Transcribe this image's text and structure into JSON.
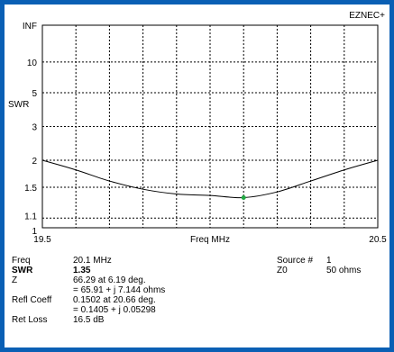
{
  "brand": "EZNEC+",
  "chart_data": {
    "type": "line",
    "ylabel": "SWR",
    "xlabel": "Freq MHz",
    "xlim": [
      19.5,
      20.5
    ],
    "y_scale": "reflection-coefficient",
    "y_ticks": [
      "INF",
      "10",
      "5",
      "3",
      "2",
      "1.5",
      "1.1",
      "1"
    ],
    "x_ticks": [
      "19.5",
      "20.5"
    ],
    "grid": true,
    "series": [
      {
        "x": [
          19.5,
          19.6,
          19.7,
          19.8,
          19.9,
          20.0,
          20.1,
          20.2,
          20.3,
          20.4,
          20.5
        ],
        "y": [
          2.0,
          1.8,
          1.6,
          1.47,
          1.4,
          1.38,
          1.35,
          1.43,
          1.6,
          1.8,
          2.0
        ],
        "color": "#000000"
      }
    ],
    "marker": {
      "x": 20.1,
      "y": 1.35,
      "color": "#22aa44"
    }
  },
  "readout": {
    "freq_label": "Freq",
    "freq_value": "20.1 MHz",
    "swr_label": "SWR",
    "swr_value": "1.35",
    "z_label": "Z",
    "z_value1": "66.29 at 6.19 deg.",
    "z_value2": "= 65.91 + j 7.144 ohms",
    "refl_label": "Refl Coeff",
    "refl_value1": "0.1502 at 20.66 deg.",
    "refl_value2": "= 0.1405 + j 0.05298",
    "retloss_label": "Ret Loss",
    "retloss_value": "16.5 dB",
    "source_label": "Source #",
    "source_value": "1",
    "z0_label": "Z0",
    "z0_value": "50 ohms"
  }
}
